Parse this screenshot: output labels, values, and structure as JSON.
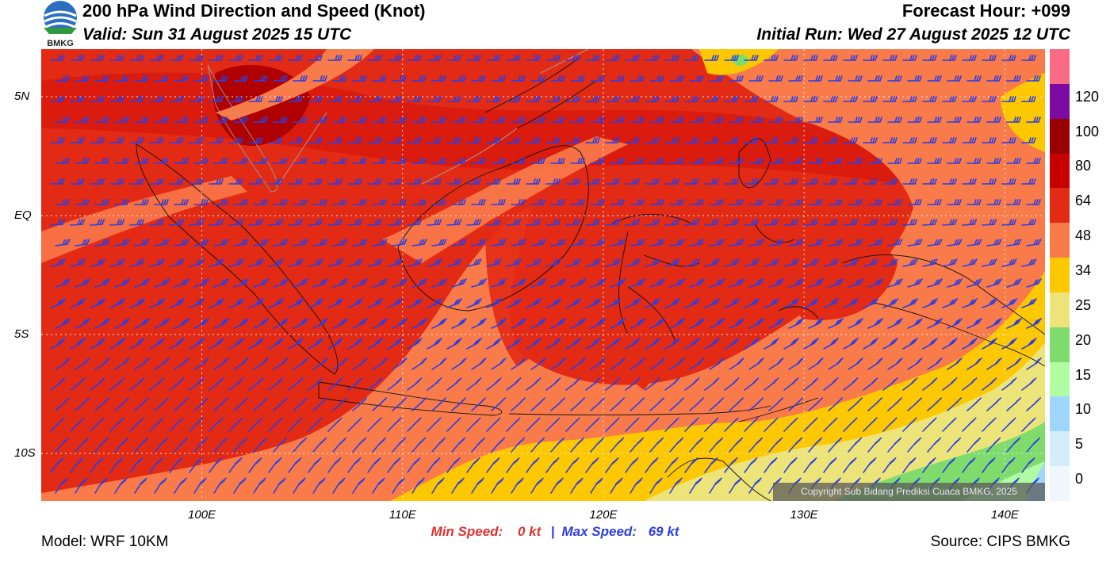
{
  "header": {
    "title": "200 hPa Wind Direction and Speed (Knot)",
    "valid": "Valid: Sun 31 August 2025 15 UTC",
    "forecast_hour": "Forecast Hour: +099",
    "initial_run": "Initial Run: Wed 27 August 2025 12 UTC"
  },
  "logo": {
    "text": "BMKG",
    "icon": "bmkg-logo-icon"
  },
  "map": {
    "lon_range": [
      92,
      142
    ],
    "lat_range": [
      -12,
      7
    ],
    "lat_labels": [
      "5N",
      "EQ",
      "5S",
      "10S"
    ],
    "lat_values": [
      5,
      0,
      -5,
      -10
    ],
    "lon_labels": [
      "100E",
      "110E",
      "120E",
      "130E",
      "140E"
    ],
    "lon_values": [
      100,
      110,
      120,
      130,
      140
    ],
    "barb_color": "#2e3ee0",
    "gridlines": "dotted"
  },
  "stats": {
    "min_label": "Min Speed:",
    "min_value": "0 kt",
    "separator": "|",
    "max_label": "Max Speed:",
    "max_value": "69 kt"
  },
  "footer": {
    "model": "Model: WRF 10KM",
    "source": "Source: CIPS BMKG",
    "copyright": "Copyright Sub Bidang Prediksi Cuaca BMKG, 2025"
  },
  "colorbar": {
    "colors": [
      "#fb6c84",
      "#7a0aa0",
      "#9a0000",
      "#c80000",
      "#e32a14",
      "#fa7b4a",
      "#fdc800",
      "#ece478",
      "#7fdc6c",
      "#b0fca2",
      "#9fd6fb",
      "#d4edfb",
      "#eff7fd"
    ],
    "labels": [
      "120",
      "100",
      "80",
      "64",
      "48",
      "34",
      "25",
      "20",
      "15",
      "10",
      "5",
      "0"
    ]
  }
}
